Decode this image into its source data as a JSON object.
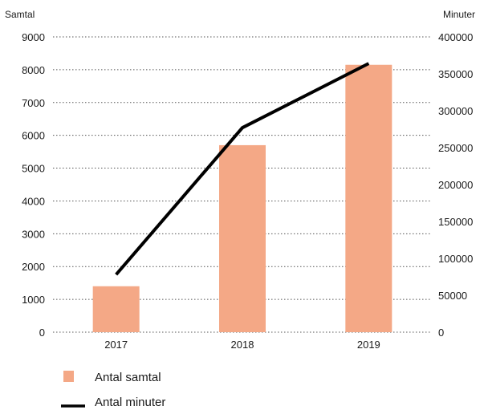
{
  "chart_data": {
    "type": "bar+line",
    "categories": [
      "2017",
      "2018",
      "2019"
    ],
    "series": [
      {
        "name": "Antal samtal",
        "type": "bar",
        "axis": "left",
        "color": "#f4a886",
        "values": [
          1400,
          5700,
          8150
        ]
      },
      {
        "name": "Antal minuter",
        "type": "line",
        "axis": "right",
        "color": "#000000",
        "values": [
          78000,
          277000,
          364000
        ]
      }
    ],
    "left_axis": {
      "label": "Samtal",
      "min": 0,
      "max": 9000,
      "ticks": [
        0,
        1000,
        2000,
        3000,
        4000,
        5000,
        6000,
        7000,
        8000,
        9000
      ]
    },
    "right_axis": {
      "label": "Minuter",
      "min": 0,
      "max": 400000,
      "ticks": [
        0,
        50000,
        100000,
        150000,
        200000,
        250000,
        300000,
        350000,
        400000
      ]
    },
    "grid": "horizontal-dotted",
    "legend_position": "bottom-left"
  }
}
